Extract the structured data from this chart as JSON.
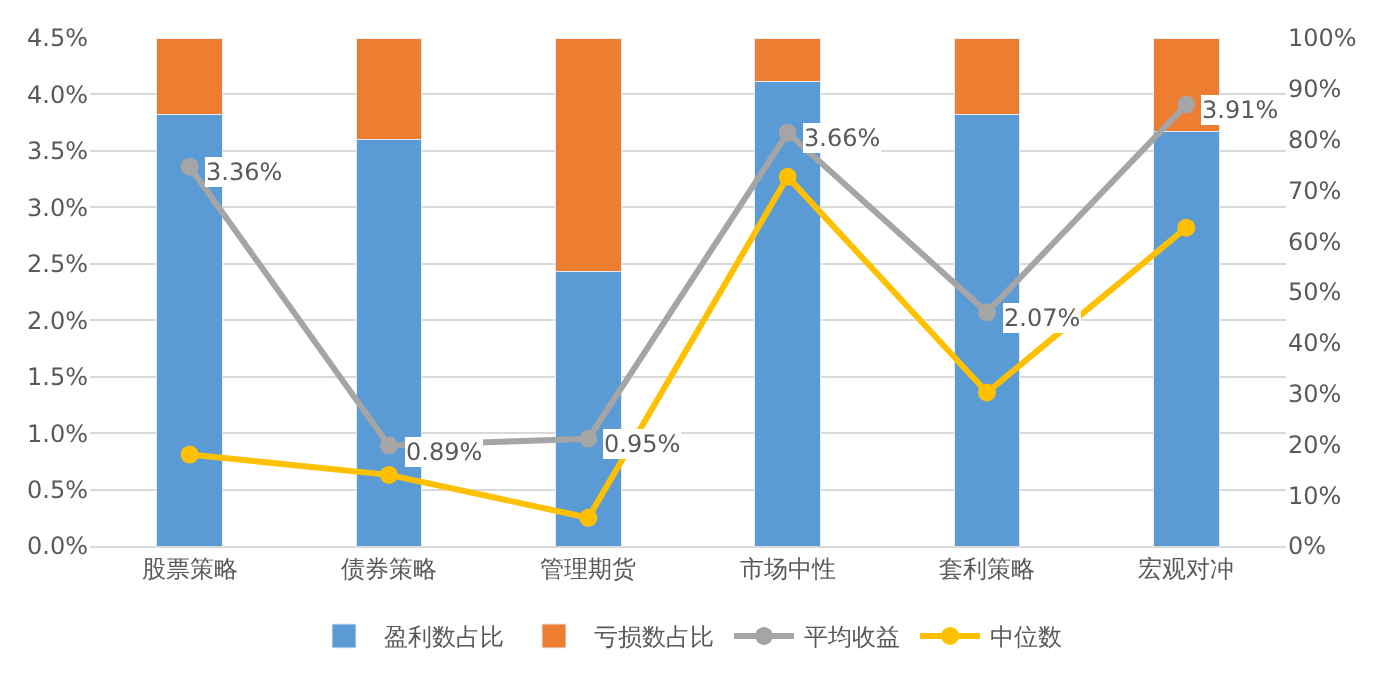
{
  "chart_data": {
    "type": "bar",
    "stacked": true,
    "categories": [
      "股票策略",
      "债券策略",
      "管理期货",
      "市场中性",
      "套利策略",
      "宏观对冲"
    ],
    "series": [
      {
        "name": "盈利数占比",
        "color": "#5b9bd5",
        "axis": "y2",
        "values": [
          85,
          80,
          54,
          91.5,
          85,
          81.5
        ]
      },
      {
        "name": "亏损数占比",
        "color": "#ed7d31",
        "axis": "y2",
        "values": [
          15,
          20,
          46,
          8.5,
          15,
          18.5
        ]
      },
      {
        "name": "平均收益",
        "type": "line",
        "color": "#a5a5a5",
        "marker": "circle",
        "values": [
          3.36,
          0.89,
          0.95,
          3.66,
          2.07,
          3.91
        ],
        "value_labels": [
          "3.36%",
          "0.89%",
          "0.95%",
          "3.66%",
          "2.07%",
          "3.91%"
        ]
      },
      {
        "name": "中位数",
        "type": "line",
        "color": "#ffc000",
        "marker": "circle",
        "values": [
          0.81,
          0.63,
          0.25,
          3.27,
          1.36,
          2.82
        ]
      }
    ],
    "ylim": [
      0,
      4.5
    ],
    "yticks": [
      {
        "value": 0,
        "label": "0.0%"
      },
      {
        "value": 0.5,
        "label": "0.5%"
      },
      {
        "value": 1,
        "label": "1.0%"
      },
      {
        "value": 1.5,
        "label": "1.5%"
      },
      {
        "value": 2,
        "label": "2.0%"
      },
      {
        "value": 2.5,
        "label": "2.5%"
      },
      {
        "value": 3,
        "label": "3.0%"
      },
      {
        "value": 3.5,
        "label": "3.5%"
      },
      {
        "value": 4,
        "label": "4.0%"
      },
      {
        "value": 4.5,
        "label": "4.5%"
      }
    ],
    "y2lim": [
      0,
      100
    ],
    "y2ticks": [
      {
        "value": 0,
        "label": "0%"
      },
      {
        "value": 10,
        "label": "10%"
      },
      {
        "value": 20,
        "label": "20%"
      },
      {
        "value": 30,
        "label": "30%"
      },
      {
        "value": 40,
        "label": "40%"
      },
      {
        "value": 50,
        "label": "50%"
      },
      {
        "value": 60,
        "label": "60%"
      },
      {
        "value": 70,
        "label": "70%"
      },
      {
        "value": 80,
        "label": "80%"
      },
      {
        "value": 90,
        "label": "90%"
      },
      {
        "value": 100,
        "label": "100%"
      }
    ],
    "grid": "y",
    "legend": "bottom"
  }
}
